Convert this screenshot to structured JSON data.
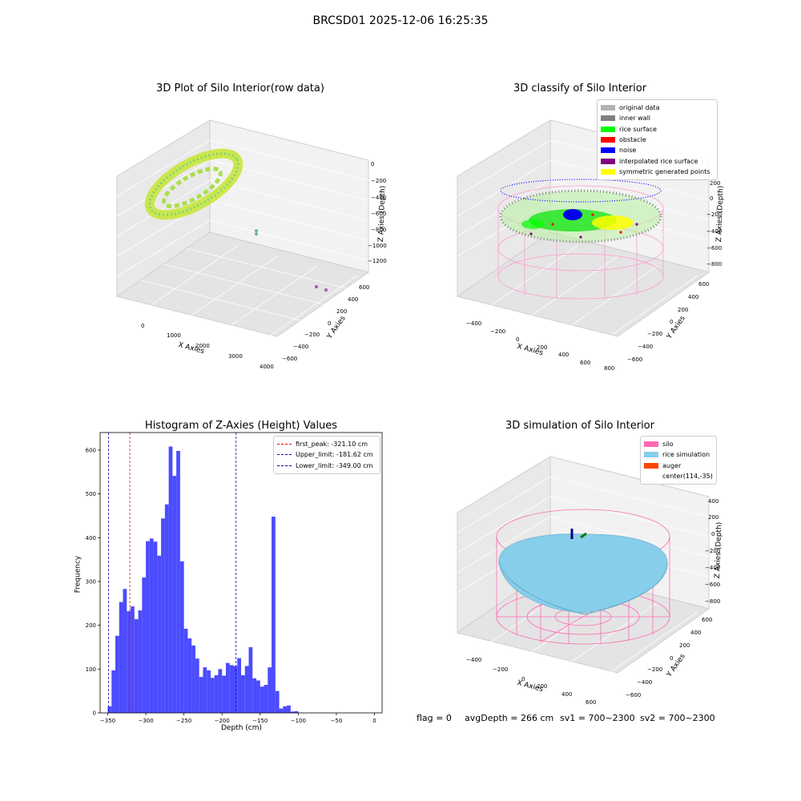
{
  "suptitle": "BRCSD01 2025-12-06 16:25:35",
  "panel_row": {
    "title": "3D Plot of Silo Interior(row data)",
    "xlabel": "X Axies",
    "ylabel": "Y Axies",
    "zlabel": "Z Axies (Depth)",
    "x_ticks": [
      "0",
      "1000",
      "2000",
      "3000",
      "4000"
    ],
    "y_ticks": [
      "600",
      "400",
      "200",
      "0",
      "−200",
      "−400",
      "−600"
    ],
    "z_ticks": [
      "0",
      "−200",
      "−400",
      "−600",
      "−800",
      "−1000",
      "−1200"
    ]
  },
  "panel_classify": {
    "title": "3D classify of Silo Interior",
    "xlabel": "X Axies",
    "ylabel": "Y Axies",
    "zlabel": "Z Axies (Depth)",
    "x_ticks": [
      "−400",
      "−200",
      "0",
      "200",
      "400",
      "600",
      "800"
    ],
    "y_ticks": [
      "600",
      "400",
      "200",
      "0",
      "−200",
      "−400",
      "−600"
    ],
    "z_ticks": [
      "200",
      "0",
      "−200",
      "−400",
      "−600",
      "−800"
    ],
    "legend": [
      {
        "label": "original data",
        "color": "#b3b3b3"
      },
      {
        "label": "inner wall",
        "color": "#808080"
      },
      {
        "label": "rice surface",
        "color": "#00ff00"
      },
      {
        "label": "obstacle",
        "color": "#ff0000"
      },
      {
        "label": "noise",
        "color": "#0000ff"
      },
      {
        "label": "interpolated rice surface",
        "color": "#800080"
      },
      {
        "label": "symmetric generated points",
        "color": "#ffff00"
      }
    ]
  },
  "panel_hist": {
    "title": "Histogram of Z-Axies (Height) Values",
    "xlabel": "Depth (cm)",
    "ylabel": "Frequency",
    "legend": [
      {
        "label": "first_peak: -321.10 cm",
        "color": "#ff0000"
      },
      {
        "label": "Upper_limit: -181.62 cm",
        "color": "#0000cc"
      },
      {
        "label": "Lower_limit: -349.00 cm",
        "color": "#0000cc"
      }
    ]
  },
  "panel_sim": {
    "title": "3D simulation of Silo Interior",
    "xlabel": "X Axies",
    "ylabel": "Y Axies",
    "zlabel": "Z Axies (Depth)",
    "x_ticks": [
      "−400",
      "−200",
      "0",
      "200",
      "400",
      "600"
    ],
    "y_ticks": [
      "600",
      "400",
      "200",
      "0",
      "−200",
      "−400",
      "−600"
    ],
    "z_ticks": [
      "400",
      "200",
      "0",
      "−200",
      "−400",
      "−600",
      "−800"
    ],
    "legend": [
      {
        "label": "silo",
        "color": "#ff69b4"
      },
      {
        "label": "rice simulation",
        "color": "#87ceeb"
      },
      {
        "label": "auger",
        "color": "#ff4500"
      },
      {
        "label": "center(114,-35)",
        "color": ""
      }
    ]
  },
  "status": {
    "flag": "flag = 0",
    "avg": "avgDepth = 266 cm",
    "sv1": "sv1 = 700~2300",
    "sv2": "sv2 = 700~2300"
  },
  "chart_data": [
    {
      "type": "scatter",
      "title": "3D Plot of Silo Interior(row data)",
      "xlabel": "X Axies",
      "ylabel": "Y Axies",
      "zlabel": "Z Axies (Depth)",
      "xlim": [
        -500,
        4000
      ],
      "ylim": [
        -700,
        700
      ],
      "zlim": [
        -1350,
        50
      ],
      "grid": true
    },
    {
      "type": "scatter",
      "title": "3D classify of Silo Interior",
      "xlabel": "X Axies",
      "ylabel": "Y Axies",
      "zlabel": "Z Axies (Depth)",
      "xlim": [
        -500,
        800
      ],
      "ylim": [
        -700,
        700
      ],
      "zlim": [
        -900,
        250
      ],
      "legend_position": "top-right",
      "grid": true
    },
    {
      "type": "bar",
      "title": "Histogram of Z-Axies (Height) Values",
      "xlabel": "Depth (cm)",
      "ylabel": "Frequency",
      "xlim": [
        -360,
        10
      ],
      "ylim": [
        0,
        640
      ],
      "x_ticks": [
        -350,
        -300,
        -250,
        -200,
        -150,
        -100,
        -50,
        0
      ],
      "y_ticks": [
        0,
        100,
        200,
        300,
        400,
        500,
        600
      ],
      "bin_start": -350,
      "bin_width": 5,
      "values": [
        15,
        97,
        176,
        253,
        283,
        232,
        243,
        214,
        234,
        309,
        392,
        398,
        391,
        359,
        444,
        476,
        608,
        541,
        598,
        346,
        192,
        170,
        154,
        124,
        82,
        104,
        97,
        80,
        86,
        100,
        85,
        114,
        109,
        107,
        125,
        86,
        107,
        150,
        79,
        74,
        60,
        64,
        104,
        448,
        50,
        10,
        15,
        17,
        3,
        4
      ],
      "vlines": [
        {
          "x": -321.1,
          "name": "first_peak: -321.10 cm",
          "color": "#ff0000"
        },
        {
          "x": -181.62,
          "name": "Upper_limit: -181.62 cm",
          "color": "#0000cc"
        },
        {
          "x": -349.0,
          "name": "Lower_limit: -349.00 cm",
          "color": "#0000cc"
        }
      ],
      "bar_color": "#4b4bff",
      "legend_position": "top-right"
    },
    {
      "type": "scatter",
      "title": "3D simulation of Silo Interior",
      "xlabel": "X Axies",
      "ylabel": "Y Axies",
      "zlabel": "Z Axies (Depth)",
      "xlim": [
        -500,
        700
      ],
      "ylim": [
        -700,
        700
      ],
      "zlim": [
        -900,
        450
      ],
      "legend_position": "top-right",
      "grid": true
    }
  ]
}
